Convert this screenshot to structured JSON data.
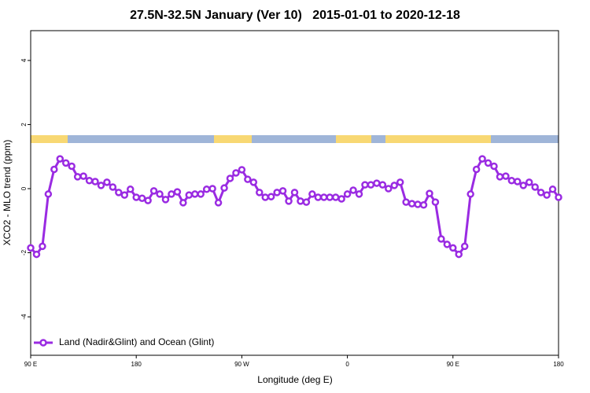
{
  "chart_data": {
    "type": "line",
    "title": "27.5N-32.5N January (Ver 10)   2015-01-01 to 2020-12-18",
    "x_label": "Longitude (deg E)",
    "y_label": "XCO2 - MLO trend (ppm)",
    "x": [
      90,
      95,
      100,
      105,
      110,
      115,
      120,
      125,
      130,
      135,
      140,
      145,
      150,
      155,
      160,
      165,
      170,
      175,
      180,
      185,
      190,
      195,
      200,
      205,
      210,
      215,
      220,
      225,
      230,
      235,
      240,
      245,
      250,
      255,
      260,
      265,
      270,
      275,
      280,
      285,
      290,
      295,
      300,
      305,
      310,
      315,
      320,
      325,
      330,
      335,
      340,
      345,
      350,
      355,
      360,
      365,
      370,
      375,
      380,
      385,
      390,
      395,
      400,
      405,
      410,
      415,
      420,
      425,
      430,
      435,
      440,
      445,
      450,
      455,
      460,
      465,
      470,
      475,
      480,
      485,
      490,
      495,
      500,
      505,
      510,
      515,
      520,
      525,
      530,
      535,
      540
    ],
    "series": [
      {
        "name": "Land (Nadir&Glint) and Ocean (Glint)",
        "color": "#9a2be2",
        "values": [
          -1.85,
          -2.05,
          -1.8,
          -0.17,
          0.6,
          0.93,
          0.8,
          0.7,
          0.37,
          0.39,
          0.25,
          0.22,
          0.1,
          0.2,
          0.05,
          -0.12,
          -0.2,
          -0.02,
          -0.27,
          -0.3,
          -0.37,
          -0.07,
          -0.17,
          -0.34,
          -0.17,
          -0.1,
          -0.44,
          -0.2,
          -0.17,
          -0.17,
          -0.02,
          0,
          -0.44,
          0.02,
          0.32,
          0.49,
          0.59,
          0.29,
          0.2,
          -0.12,
          -0.27,
          -0.25,
          -0.12,
          -0.07,
          -0.39,
          -0.12,
          -0.39,
          -0.42,
          -0.17,
          -0.27,
          -0.27,
          -0.27,
          -0.27,
          -0.32,
          -0.17,
          -0.05,
          -0.17,
          0.12,
          0.12,
          0.17,
          0.12,
          0,
          0.1,
          0.2,
          -0.42,
          -0.47,
          -0.49,
          -0.51,
          -0.15,
          -0.42,
          -1.57,
          -1.74,
          -1.85,
          -2.05,
          -1.8,
          -0.17,
          0.6,
          0.93,
          0.8,
          0.7,
          0.37,
          0.39,
          0.25,
          0.22,
          0.1,
          0.2,
          0.05,
          -0.12,
          -0.2,
          -0.02,
          -0.27
        ]
      }
    ],
    "xlim": [
      90,
      540
    ],
    "xticks": [
      {
        "value": 90,
        "label": "90 E"
      },
      180,
      {
        "value": 270,
        "label": "90 W"
      },
      {
        "value": 360,
        "label": "0"
      },
      {
        "value": 450,
        "label": "90 E"
      },
      {
        "value": 540,
        "label": "180"
      }
    ],
    "ylim": [
      -5.2,
      4.93
    ],
    "yticks": [
      -4,
      -2,
      0,
      2,
      4
    ],
    "legend": "bottom-left"
  }
}
